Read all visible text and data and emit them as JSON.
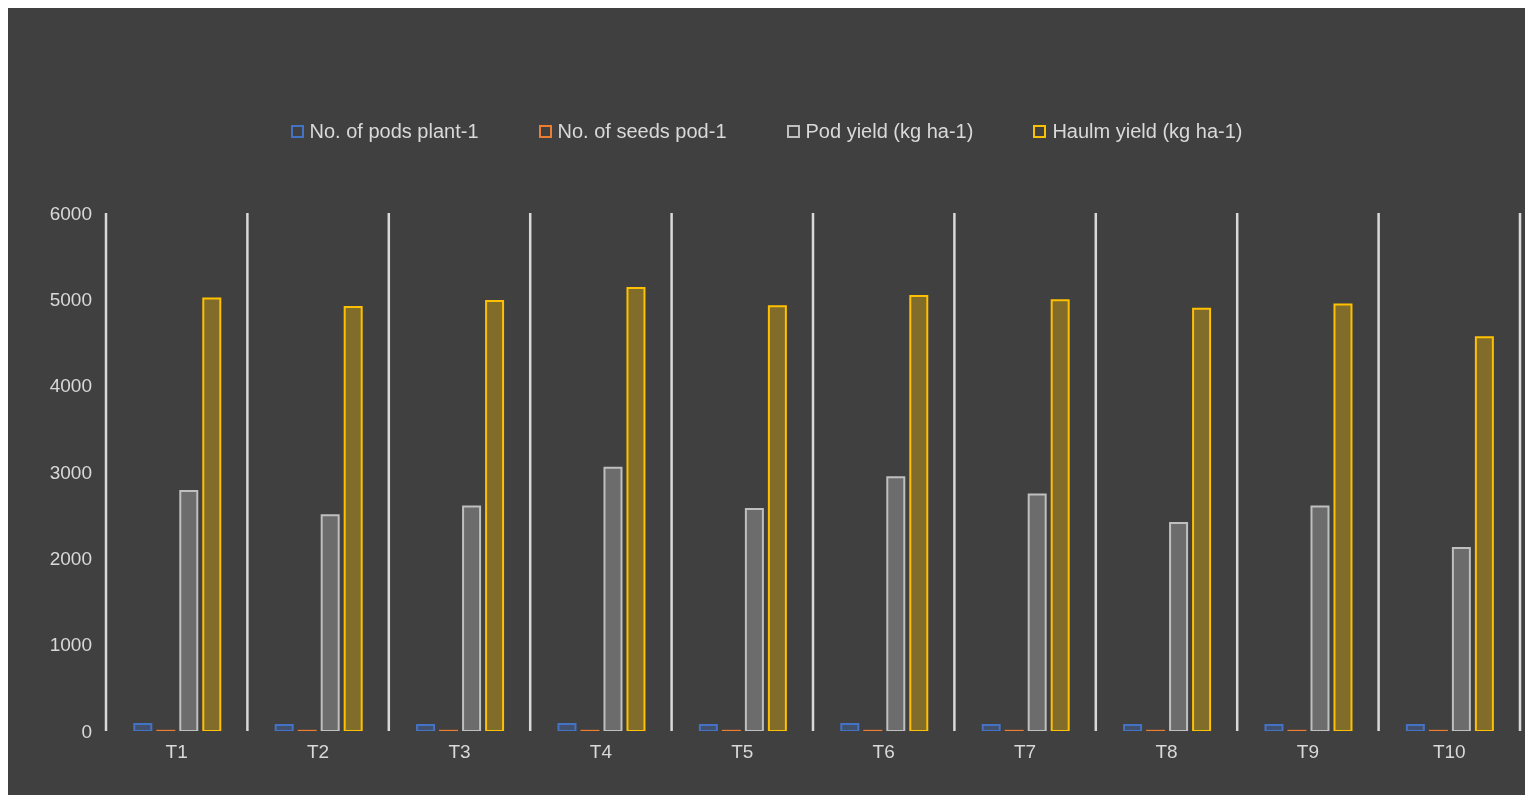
{
  "chart_data": {
    "type": "bar",
    "categories": [
      "T1",
      "T2",
      "T3",
      "T4",
      "T5",
      "T6",
      "T7",
      "T8",
      "T9",
      "T10"
    ],
    "series": [
      {
        "name": "No. of pods plant-1",
        "color": "#4472c4",
        "values": [
          80,
          70,
          70,
          80,
          70,
          80,
          70,
          70,
          70,
          70
        ]
      },
      {
        "name": "No. of seeds pod-1",
        "color": "#ed7d31",
        "values": [
          2,
          2,
          2,
          2,
          2,
          2,
          2,
          2,
          2,
          2
        ]
      },
      {
        "name": "Pod yield (kg ha-1)",
        "color": "#bfbfbf",
        "values": [
          2780,
          2500,
          2600,
          3050,
          2570,
          2940,
          2740,
          2410,
          2600,
          2120
        ]
      },
      {
        "name": "Haulm yield (kg ha-1)",
        "color": "#ffc000",
        "values": [
          5010,
          4910,
          4980,
          5130,
          4920,
          5040,
          4990,
          4890,
          4940,
          4560
        ]
      }
    ],
    "ylim": [
      0,
      6000
    ],
    "yticks": [
      0,
      1000,
      2000,
      3000,
      4000,
      5000,
      6000
    ],
    "grid": "x",
    "legend": "top"
  }
}
